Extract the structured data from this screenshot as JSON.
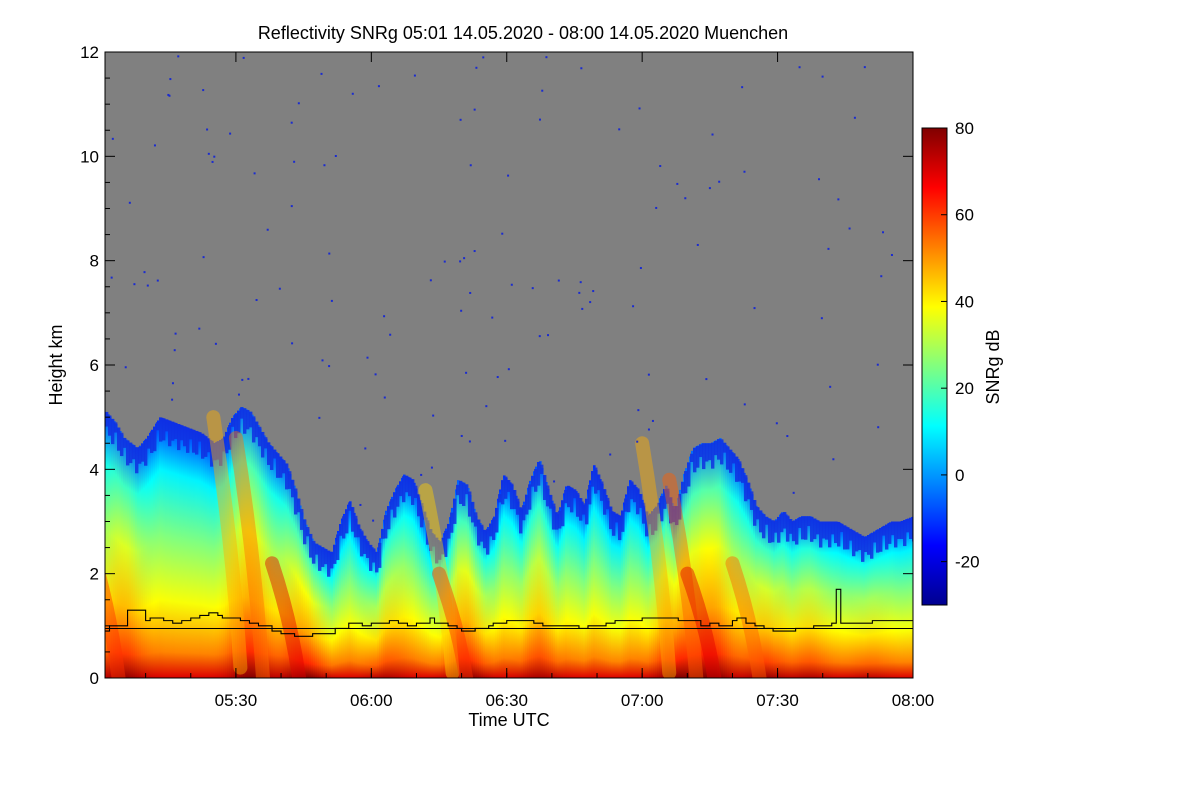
{
  "chart_data": {
    "type": "heatmap",
    "title": "Reflectivity SNRg   05:01 14.05.2020 - 08:00 14.05.2020 Muenchen",
    "xlabel": "Time UTC",
    "ylabel": "Height km",
    "x_range_minutes": [
      301,
      480
    ],
    "x_ticks": [
      {
        "minute": 330,
        "label": "05:30"
      },
      {
        "minute": 360,
        "label": "06:00"
      },
      {
        "minute": 390,
        "label": "06:30"
      },
      {
        "minute": 420,
        "label": "07:00"
      },
      {
        "minute": 450,
        "label": "07:30"
      },
      {
        "minute": 480,
        "label": "08:00"
      }
    ],
    "ylim": [
      0,
      12
    ],
    "y_ticks": [
      0,
      2,
      4,
      6,
      8,
      10,
      12
    ],
    "no_signal_color": "#808080",
    "colorbar": {
      "label": "SNRg dB",
      "range": [
        -30,
        80
      ],
      "ticks": [
        -20,
        0,
        20,
        40,
        60,
        80
      ],
      "colormap": [
        "#00008f",
        "#0000ff",
        "#0080ff",
        "#00ffff",
        "#80ff80",
        "#ffff00",
        "#ff8000",
        "#ff0000",
        "#800000"
      ]
    },
    "signal_top_km": {
      "minutes": [
        301,
        303,
        305,
        308,
        310,
        313,
        316,
        319,
        322,
        325,
        327,
        329,
        331,
        333,
        335,
        337,
        339,
        341,
        343,
        345,
        347,
        349,
        351,
        353,
        355,
        357,
        359,
        361,
        363,
        365,
        367,
        369,
        371,
        373,
        375,
        377,
        379,
        381,
        383,
        385,
        387,
        389,
        391,
        393,
        395,
        397,
        399,
        401,
        403,
        405,
        407,
        409,
        411,
        413,
        415,
        417,
        419,
        421,
        423,
        425,
        427,
        429,
        431,
        433,
        435,
        437,
        439,
        441,
        443,
        445,
        447,
        449,
        451,
        453,
        455,
        457,
        459,
        461,
        463,
        465,
        467,
        469,
        471,
        473,
        475,
        477,
        480
      ],
      "values": [
        5.1,
        4.9,
        4.6,
        4.4,
        4.6,
        5.0,
        4.9,
        4.8,
        4.7,
        4.5,
        4.6,
        5.0,
        5.2,
        5.1,
        4.8,
        4.5,
        4.3,
        4.1,
        3.6,
        3.0,
        2.6,
        2.5,
        2.4,
        3.0,
        3.4,
        2.9,
        2.6,
        2.4,
        3.2,
        3.6,
        3.9,
        3.8,
        3.3,
        2.8,
        2.6,
        3.0,
        3.8,
        3.7,
        3.1,
        2.8,
        3.1,
        3.9,
        3.7,
        3.2,
        3.8,
        4.2,
        3.6,
        3.1,
        3.7,
        3.6,
        3.3,
        4.1,
        3.7,
        3.2,
        3.1,
        3.8,
        3.6,
        3.1,
        3.3,
        3.7,
        3.2,
        3.9,
        4.4,
        4.5,
        4.5,
        4.6,
        4.4,
        4.2,
        3.8,
        3.3,
        3.1,
        3.0,
        3.2,
        3.0,
        3.1,
        3.1,
        3.0,
        3.0,
        3.0,
        2.9,
        2.8,
        2.7,
        2.8,
        2.9,
        3.0,
        3.0,
        3.1
      ]
    },
    "mixing_layer_km": {
      "minutes": [
        301,
        302,
        305,
        306,
        307,
        310,
        311,
        314,
        316,
        318,
        320,
        322,
        324,
        326,
        327,
        329,
        331,
        333,
        335,
        336,
        338,
        340,
        341,
        343,
        345,
        347,
        348,
        351,
        352,
        355,
        358,
        360,
        362,
        364,
        366,
        368,
        370,
        373,
        374,
        377,
        379,
        380,
        383,
        386,
        387,
        390,
        393,
        396,
        398,
        400,
        402,
        406,
        408,
        412,
        414,
        418,
        420,
        423,
        426,
        428,
        431,
        433,
        435,
        437,
        440,
        441,
        443,
        445,
        447,
        449,
        450,
        452,
        454,
        456,
        458,
        460,
        461,
        462,
        463,
        464,
        466,
        468,
        471,
        473,
        475,
        478,
        480
      ],
      "values": [
        0.9,
        1.0,
        1.0,
        1.3,
        1.3,
        1.1,
        1.15,
        1.1,
        1.05,
        1.1,
        1.15,
        1.2,
        1.25,
        1.2,
        1.15,
        1.15,
        1.1,
        1.05,
        1.0,
        1.0,
        0.9,
        0.85,
        0.85,
        0.8,
        0.8,
        0.85,
        0.85,
        0.85,
        0.95,
        1.05,
        1.0,
        1.05,
        1.05,
        1.1,
        1.05,
        1.0,
        1.05,
        1.15,
        1.05,
        1.0,
        0.95,
        0.9,
        0.95,
        1.0,
        1.05,
        1.1,
        1.1,
        1.05,
        1.0,
        1.0,
        1.0,
        0.95,
        1.0,
        1.05,
        1.1,
        1.1,
        1.15,
        1.15,
        1.15,
        1.1,
        1.1,
        1.0,
        1.05,
        1.0,
        1.1,
        1.15,
        1.05,
        1.0,
        0.95,
        0.9,
        0.9,
        0.9,
        0.95,
        0.95,
        1.0,
        1.0,
        1.0,
        1.05,
        1.7,
        1.05,
        1.05,
        1.05,
        1.1,
        1.1,
        1.1,
        1.1,
        1.1
      ]
    },
    "reference_line_km": 0.95
  }
}
